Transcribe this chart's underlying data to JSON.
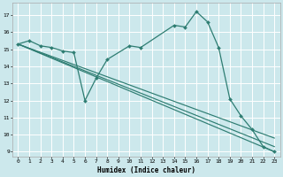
{
  "title": "",
  "xlabel": "Humidex (Indice chaleur)",
  "ylabel": "",
  "xlim": [
    -0.5,
    23.5
  ],
  "ylim": [
    8.7,
    17.7
  ],
  "yticks": [
    9,
    10,
    11,
    12,
    13,
    14,
    15,
    16,
    17
  ],
  "xticks": [
    0,
    1,
    2,
    3,
    4,
    5,
    6,
    7,
    8,
    9,
    10,
    11,
    12,
    13,
    14,
    15,
    16,
    17,
    18,
    19,
    20,
    21,
    22,
    23
  ],
  "bg_color": "#cce8ec",
  "grid_color": "#ffffff",
  "line_color": "#2e7d72",
  "main_line": {
    "x": [
      0,
      1,
      2,
      3,
      4,
      5,
      6,
      7,
      8,
      10,
      11,
      14,
      15,
      16,
      17,
      18,
      19,
      20,
      21,
      22,
      23
    ],
    "y": [
      15.3,
      15.5,
      15.2,
      15.1,
      14.9,
      14.8,
      12.0,
      13.3,
      14.4,
      15.2,
      15.1,
      16.4,
      16.3,
      17.2,
      16.6,
      15.1,
      12.1,
      11.1,
      10.3,
      9.3,
      9.0
    ],
    "marker": "D",
    "markersize": 2.0,
    "linewidth": 0.9
  },
  "trend_lines": [
    {
      "x": [
        0,
        23
      ],
      "y": [
        15.3,
        9.0
      ]
    },
    {
      "x": [
        0,
        23
      ],
      "y": [
        15.3,
        9.3
      ]
    },
    {
      "x": [
        0,
        23
      ],
      "y": [
        15.3,
        9.8
      ]
    }
  ]
}
